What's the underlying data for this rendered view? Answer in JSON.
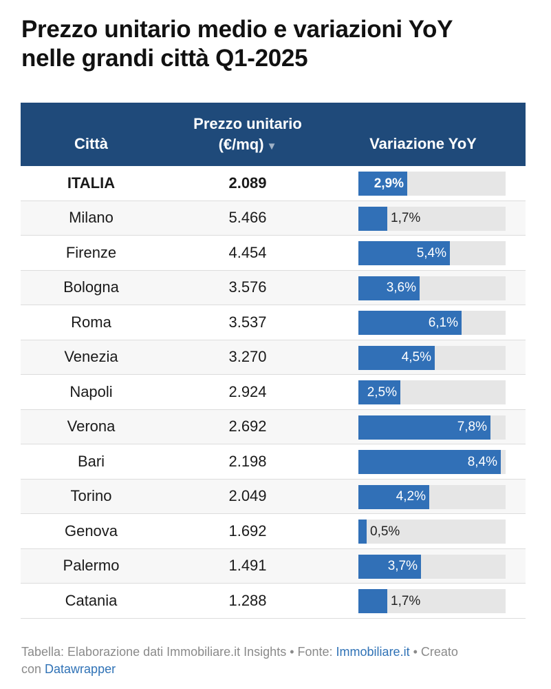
{
  "title": {
    "line1": "Prezzo unitario medio e variazioni YoY",
    "line2": "nelle grandi città Q1-2025"
  },
  "header": {
    "city": "Città",
    "price_line1": "Prezzo unitario",
    "price_line2": "(€/mq)",
    "sort_icon": "▼",
    "variation": "Variazione YoY"
  },
  "colors": {
    "header_bg": "#1f4a7a",
    "bar": "#3170b7",
    "track": "#e6e6e6"
  },
  "chart_data": {
    "type": "table",
    "columns": [
      "Città",
      "Prezzo unitario (€/mq)",
      "Variazione YoY"
    ],
    "bar_max": 8.7,
    "rows": [
      {
        "city": "ITALIA",
        "price": "2.089",
        "yoy": 2.9,
        "yoy_label": "2,9%"
      },
      {
        "city": "Milano",
        "price": "5.466",
        "yoy": 1.7,
        "yoy_label": "1,7%"
      },
      {
        "city": "Firenze",
        "price": "4.454",
        "yoy": 5.4,
        "yoy_label": "5,4%"
      },
      {
        "city": "Bologna",
        "price": "3.576",
        "yoy": 3.6,
        "yoy_label": "3,6%"
      },
      {
        "city": "Roma",
        "price": "3.537",
        "yoy": 6.1,
        "yoy_label": "6,1%"
      },
      {
        "city": "Venezia",
        "price": "3.270",
        "yoy": 4.5,
        "yoy_label": "4,5%"
      },
      {
        "city": "Napoli",
        "price": "2.924",
        "yoy": 2.5,
        "yoy_label": "2,5%"
      },
      {
        "city": "Verona",
        "price": "2.692",
        "yoy": 7.8,
        "yoy_label": "7,8%"
      },
      {
        "city": "Bari",
        "price": "2.198",
        "yoy": 8.4,
        "yoy_label": "8,4%"
      },
      {
        "city": "Torino",
        "price": "2.049",
        "yoy": 4.2,
        "yoy_label": "4,2%"
      },
      {
        "city": "Genova",
        "price": "1.692",
        "yoy": 0.5,
        "yoy_label": "0,5%"
      },
      {
        "city": "Palermo",
        "price": "1.491",
        "yoy": 3.7,
        "yoy_label": "3,7%"
      },
      {
        "city": "Catania",
        "price": "1.288",
        "yoy": 1.7,
        "yoy_label": "1,7%"
      }
    ]
  },
  "footer": {
    "prefix": "Tabella: Elaborazione dati Immobiliare.it Insights • Fonte: ",
    "source_link": "Immobiliare.it",
    "middle": " • Creato",
    "middle2": "con ",
    "tool_link": "Datawrapper"
  }
}
